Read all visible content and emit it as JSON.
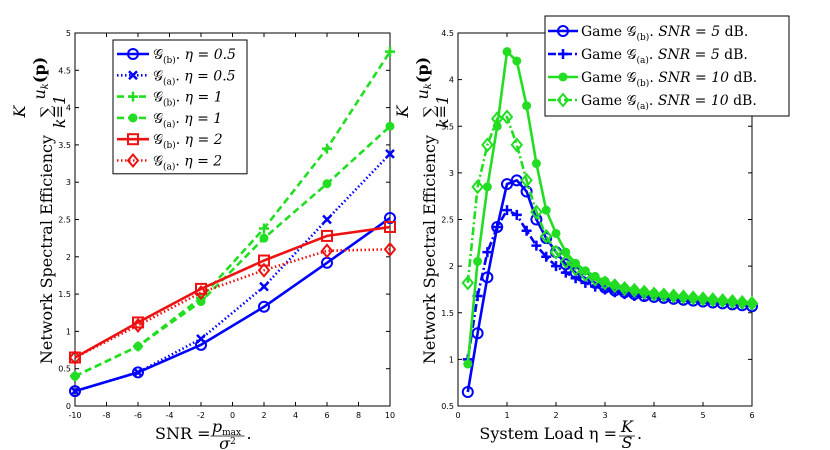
{
  "chart_data": [
    {
      "type": "line",
      "xlabel": "SNR = p_max / σ².",
      "xlabel_parts": {
        "prefix": "SNR = ",
        "num": "p",
        "num_sub": "max",
        "den": "σ",
        "den_sup": "2",
        "suffix": "."
      },
      "ylabel": "Network Spectral Efficiency",
      "ylabel_sum": {
        "top": "K",
        "bottom": "k=1",
        "body": "u",
        "body_sub": "k",
        "arg": "(p)"
      },
      "xlim": [
        -10,
        10
      ],
      "ylim": [
        0,
        5
      ],
      "xticks": [
        "-10",
        "-8",
        "-6",
        "-4",
        "-2",
        "0",
        "2",
        "4",
        "6",
        "8",
        "10"
      ],
      "yticks": [
        "0",
        "0.5",
        "1",
        "1.5",
        "2",
        "2.5",
        "3",
        "3.5",
        "4",
        "4.5",
        "5"
      ],
      "xtick_values": [
        -10,
        -8,
        -6,
        -4,
        -2,
        0,
        2,
        4,
        6,
        8,
        10
      ],
      "ytick_values": [
        0,
        0.5,
        1,
        1.5,
        2,
        2.5,
        3,
        3.5,
        4,
        4.5,
        5
      ],
      "legend_position": "top-left",
      "series": [
        {
          "name": "G_(b). η = 0.5",
          "sub": "(b)",
          "eta": "η = 0.5",
          "color": "#0000ff",
          "dash": "solid",
          "marker": "circle",
          "x": [
            -10,
            -6,
            -2,
            2,
            6,
            10
          ],
          "values": [
            0.2,
            0.45,
            0.82,
            1.33,
            1.92,
            2.52
          ]
        },
        {
          "name": "G_(a). η = 0.5",
          "sub": "(a)",
          "eta": "η = 0.5",
          "color": "#0000ff",
          "dash": "dotted",
          "marker": "x",
          "x": [
            -10,
            -6,
            -2,
            2,
            6,
            10
          ],
          "values": [
            0.2,
            0.45,
            0.9,
            1.6,
            2.5,
            3.38
          ]
        },
        {
          "name": "G_(b). η = 1",
          "sub": "(b)",
          "eta": "η = 1",
          "color": "#22dd22",
          "dash": "dashed",
          "marker": "plus",
          "x": [
            -10,
            -6,
            -2,
            2,
            6,
            10
          ],
          "values": [
            0.4,
            0.8,
            1.45,
            2.38,
            3.45,
            4.75
          ]
        },
        {
          "name": "G_(a). η = 1",
          "sub": "(a)",
          "eta": "η = 1",
          "color": "#22dd22",
          "dash": "dashed",
          "marker": "dot",
          "x": [
            -10,
            -6,
            -2,
            2,
            6,
            10
          ],
          "values": [
            0.4,
            0.8,
            1.4,
            2.25,
            2.98,
            3.75
          ]
        },
        {
          "name": "G_(b). η = 2",
          "sub": "(b)",
          "eta": "η = 2",
          "color": "#ee1111",
          "dash": "solid",
          "marker": "square",
          "x": [
            -10,
            -6,
            -2,
            2,
            6,
            10
          ],
          "values": [
            0.65,
            1.12,
            1.57,
            1.95,
            2.28,
            2.4
          ]
        },
        {
          "name": "G_(a). η = 2",
          "sub": "(a)",
          "eta": "η = 2",
          "color": "#ee1111",
          "dash": "dotted",
          "marker": "diamond",
          "x": [
            -10,
            -6,
            -2,
            2,
            6,
            10
          ],
          "values": [
            0.65,
            1.08,
            1.52,
            1.82,
            2.08,
            2.1
          ]
        }
      ]
    },
    {
      "type": "line",
      "xlabel": "System Load η = K / S.",
      "xlabel_parts": {
        "prefix": "System Load η = ",
        "num": "K",
        "den": "S",
        "suffix": "."
      },
      "ylabel": "Network Spectral Efficiency",
      "ylabel_sum": {
        "top": "K",
        "bottom": "k=1",
        "body": "u",
        "body_sub": "k",
        "arg": "(p)"
      },
      "xlim": [
        0,
        6
      ],
      "ylim": [
        0.5,
        4.5
      ],
      "xticks": [
        "0",
        "1",
        "2",
        "3",
        "4",
        "5",
        "6"
      ],
      "yticks": [
        "0.5",
        "1",
        "1.5",
        "2",
        "2.5",
        "3",
        "3.5",
        "4",
        "4.5"
      ],
      "xtick_values": [
        0,
        1,
        2,
        3,
        4,
        5,
        6
      ],
      "ytick_values": [
        0.5,
        1,
        1.5,
        2,
        2.5,
        3,
        3.5,
        4,
        4.5
      ],
      "legend_position": "top-right",
      "series": [
        {
          "name": "Game G_(b). SNR = 5 dB.",
          "prefix": "Game ",
          "sub": "(b)",
          "snr": "SNR = 5",
          "unit": " dB.",
          "color": "#0000ff",
          "dash": "solid",
          "marker": "circle",
          "x": [
            0.2,
            0.4,
            0.6,
            0.8,
            1.0,
            1.2,
            1.4,
            1.6,
            1.8,
            2.0,
            2.2,
            2.4,
            2.6,
            2.8,
            3.0,
            3.2,
            3.4,
            3.6,
            3.8,
            4.0,
            4.2,
            4.4,
            4.6,
            4.8,
            5.0,
            5.2,
            5.4,
            5.6,
            5.8,
            6.0
          ],
          "values": [
            0.65,
            1.28,
            1.88,
            2.42,
            2.88,
            2.92,
            2.8,
            2.5,
            2.3,
            2.15,
            2.02,
            1.93,
            1.87,
            1.82,
            1.77,
            1.74,
            1.72,
            1.7,
            1.68,
            1.67,
            1.66,
            1.65,
            1.64,
            1.63,
            1.62,
            1.61,
            1.6,
            1.59,
            1.58,
            1.57
          ]
        },
        {
          "name": "Game G_(a). SNR = 5 dB.",
          "prefix": "Game ",
          "sub": "(a)",
          "snr": "SNR = 5",
          "unit": " dB.",
          "color": "#0000ff",
          "dash": "dashdot",
          "marker": "plus",
          "x": [
            0.2,
            0.4,
            0.6,
            0.8,
            1.0,
            1.2,
            1.4,
            1.6,
            1.8,
            2.0,
            2.2,
            2.4,
            2.6,
            2.8,
            3.0,
            3.2,
            3.4,
            3.6,
            3.8,
            4.0,
            4.2,
            4.4,
            4.6,
            4.8,
            5.0,
            5.2,
            5.4,
            5.6,
            5.8,
            6.0
          ],
          "values": [
            1.0,
            1.68,
            2.15,
            2.42,
            2.6,
            2.55,
            2.38,
            2.22,
            2.1,
            2.0,
            1.93,
            1.87,
            1.82,
            1.78,
            1.75,
            1.72,
            1.7,
            1.68,
            1.67,
            1.66,
            1.65,
            1.64,
            1.63,
            1.62,
            1.61,
            1.6,
            1.6,
            1.59,
            1.58,
            1.58
          ]
        },
        {
          "name": "Game G_(b). SNR = 10 dB.",
          "prefix": "Game ",
          "sub": "(b)",
          "snr": "SNR = 10",
          "unit": " dB.",
          "color": "#22dd22",
          "dash": "solid",
          "marker": "dot",
          "x": [
            0.2,
            0.4,
            0.6,
            0.8,
            1.0,
            1.2,
            1.4,
            1.6,
            1.8,
            2.0,
            2.2,
            2.4,
            2.6,
            2.8,
            3.0,
            3.2,
            3.4,
            3.6,
            3.8,
            4.0,
            4.2,
            4.4,
            4.6,
            4.8,
            5.0,
            5.2,
            5.4,
            5.6,
            5.8,
            6.0
          ],
          "values": [
            0.95,
            2.05,
            2.85,
            3.5,
            4.3,
            4.2,
            3.72,
            3.1,
            2.6,
            2.35,
            2.15,
            2.03,
            1.95,
            1.89,
            1.84,
            1.8,
            1.77,
            1.75,
            1.73,
            1.71,
            1.7,
            1.68,
            1.67,
            1.66,
            1.65,
            1.64,
            1.63,
            1.62,
            1.61,
            1.6
          ]
        },
        {
          "name": "Game G_(a). SNR = 10 dB.",
          "prefix": "Game ",
          "sub": "(a)",
          "snr": "SNR = 10",
          "unit": " dB.",
          "color": "#22dd22",
          "dash": "dashdot",
          "marker": "diamond",
          "x": [
            0.2,
            0.4,
            0.6,
            0.8,
            1.0,
            1.2,
            1.4,
            1.6,
            1.8,
            2.0,
            2.2,
            2.4,
            2.6,
            2.8,
            3.0,
            3.2,
            3.4,
            3.6,
            3.8,
            4.0,
            4.2,
            4.4,
            4.6,
            4.8,
            5.0,
            5.2,
            5.4,
            5.6,
            5.8,
            6.0
          ],
          "values": [
            1.82,
            2.85,
            3.3,
            3.58,
            3.6,
            3.3,
            2.92,
            2.58,
            2.32,
            2.15,
            2.05,
            1.97,
            1.91,
            1.86,
            1.82,
            1.79,
            1.76,
            1.74,
            1.72,
            1.7,
            1.69,
            1.68,
            1.67,
            1.66,
            1.65,
            1.64,
            1.63,
            1.62,
            1.61,
            1.6
          ]
        }
      ]
    }
  ]
}
